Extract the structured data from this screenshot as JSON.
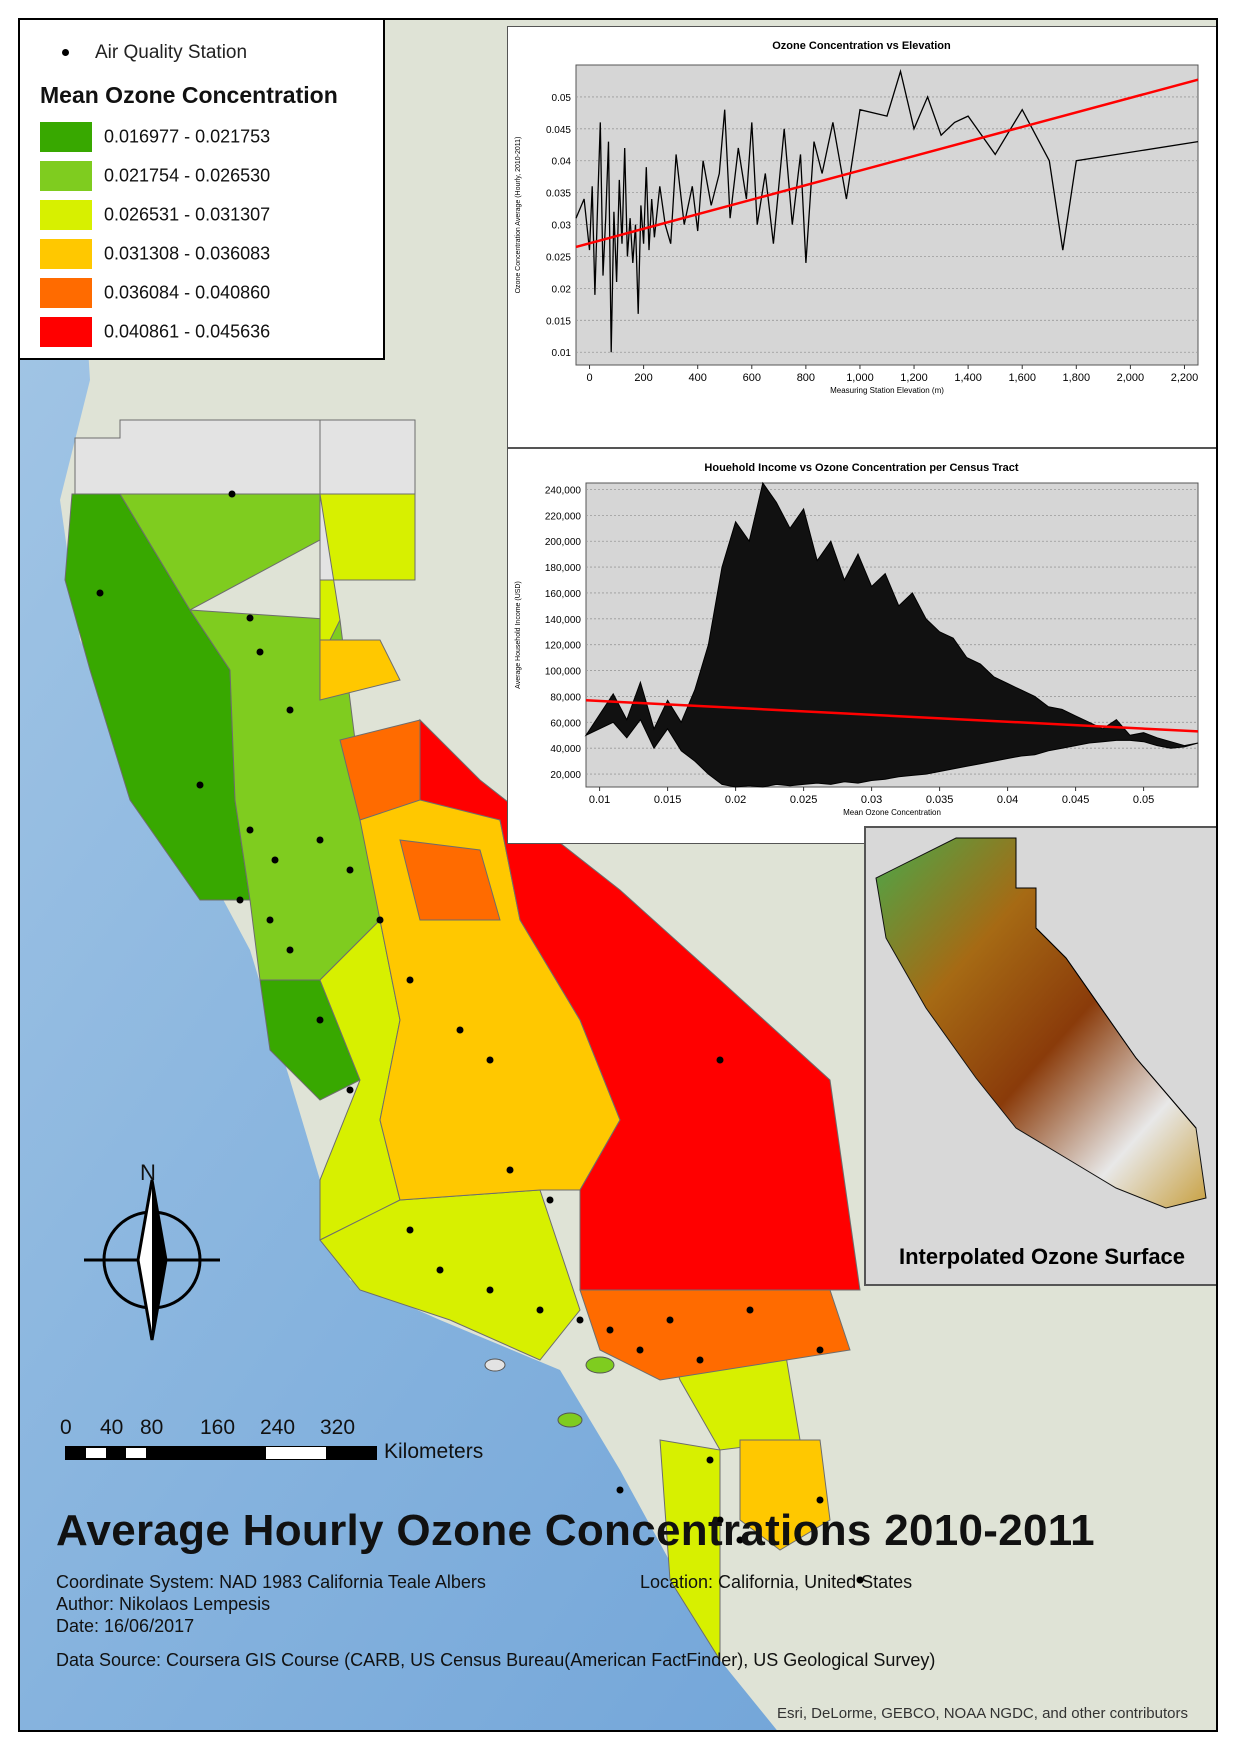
{
  "map": {
    "title": "Average Hourly Ozone Concentrations 2010-2011",
    "coordinate_system": "Coordinate System: NAD 1983 California Teale Albers",
    "location": "Location: California, United States",
    "author": "Author: Nikolaos Lempesis",
    "date": "Date: 16/06/2017",
    "data_source": "Data Source: Coursera GIS Course (CARB, US Census Bureau(American FactFinder), US Geological Survey)",
    "credits": "Esri, DeLorme, GEBCO, NOAA NGDC, and other contributors",
    "north_label": "N"
  },
  "legend": {
    "station_label": "Air Quality Station",
    "title": "Mean Ozone Concentration",
    "classes": [
      {
        "label": "0.016977 - 0.021753",
        "color": "#38a800"
      },
      {
        "label": "0.021754 - 0.026530",
        "color": "#7fcc1f"
      },
      {
        "label": "0.026531 - 0.031307",
        "color": "#d7f000"
      },
      {
        "label": "0.031308 - 0.036083",
        "color": "#ffc800"
      },
      {
        "label": "0.036084 - 0.040860",
        "color": "#ff6b00"
      },
      {
        "label": "0.040861 - 0.045636",
        "color": "#ff0000"
      }
    ]
  },
  "scale_bar": {
    "ticks": [
      "0",
      "40",
      "80",
      "160",
      "240",
      "320"
    ],
    "unit": "Kilometers"
  },
  "inset": {
    "caption": "Interpolated Ozone Surface"
  },
  "chart_data": [
    {
      "type": "line",
      "title": "Ozone Concentration vs Elevation",
      "xlabel": "Measuring Station Elevation (m)",
      "ylabel": "Ozone Concentration Average (Hourly, 2010-2011)",
      "xlim": [
        -50,
        2250
      ],
      "ylim": [
        0.008,
        0.055
      ],
      "x_ticks": [
        "0",
        "200",
        "400",
        "600",
        "800",
        "1,000",
        "1,200",
        "1,400",
        "1,600",
        "1,800",
        "2,000",
        "2,200"
      ],
      "y_ticks": [
        "0.01",
        "0.015",
        "0.02",
        "0.025",
        "0.03",
        "0.035",
        "0.04",
        "0.045",
        "0.05"
      ],
      "series": [
        {
          "name": "Ozone",
          "color": "#000000",
          "x": [
            -50,
            -20,
            0,
            10,
            20,
            30,
            40,
            50,
            60,
            70,
            80,
            90,
            100,
            110,
            120,
            130,
            140,
            150,
            160,
            170,
            180,
            190,
            200,
            210,
            220,
            230,
            240,
            260,
            280,
            300,
            320,
            350,
            380,
            400,
            420,
            450,
            480,
            500,
            520,
            550,
            580,
            600,
            620,
            650,
            680,
            700,
            720,
            750,
            780,
            800,
            830,
            860,
            900,
            950,
            1000,
            1100,
            1150,
            1200,
            1250,
            1300,
            1350,
            1400,
            1500,
            1600,
            1700,
            1750,
            1800,
            1950,
            2250
          ],
          "y": [
            0.031,
            0.034,
            0.026,
            0.036,
            0.019,
            0.033,
            0.046,
            0.022,
            0.031,
            0.043,
            0.01,
            0.032,
            0.021,
            0.037,
            0.027,
            0.042,
            0.025,
            0.031,
            0.024,
            0.03,
            0.016,
            0.033,
            0.027,
            0.039,
            0.026,
            0.034,
            0.028,
            0.036,
            0.03,
            0.027,
            0.041,
            0.03,
            0.036,
            0.029,
            0.04,
            0.033,
            0.038,
            0.048,
            0.031,
            0.042,
            0.034,
            0.046,
            0.03,
            0.038,
            0.027,
            0.036,
            0.045,
            0.03,
            0.041,
            0.024,
            0.043,
            0.038,
            0.046,
            0.034,
            0.048,
            0.047,
            0.054,
            0.045,
            0.05,
            0.044,
            0.046,
            0.047,
            0.041,
            0.048,
            0.04,
            0.026,
            0.04,
            0.041,
            0.043
          ]
        },
        {
          "name": "Trend",
          "color": "#ff0000",
          "x": [
            -50,
            2250
          ],
          "y": [
            0.0265,
            0.0527
          ]
        }
      ]
    },
    {
      "type": "line",
      "title": "Houehold Income vs Ozone Concentration per Census Tract",
      "xlabel": "Mean Ozone Concentration",
      "ylabel": "Average Household Income (USD)",
      "xlim": [
        0.009,
        0.054
      ],
      "ylim": [
        10000,
        245000
      ],
      "x_ticks": [
        "0.01",
        "0.015",
        "0.02",
        "0.025",
        "0.03",
        "0.035",
        "0.04",
        "0.045",
        "0.05"
      ],
      "y_ticks": [
        "20,000",
        "40,000",
        "60,000",
        "80,000",
        "100,000",
        "120,000",
        "140,000",
        "160,000",
        "180,000",
        "200,000",
        "220,000",
        "240,000"
      ],
      "series": [
        {
          "name": "Income",
          "color": "#000000",
          "x": [
            0.009,
            0.011,
            0.012,
            0.013,
            0.014,
            0.015,
            0.016,
            0.017,
            0.018,
            0.019,
            0.02,
            0.021,
            0.022,
            0.023,
            0.024,
            0.025,
            0.026,
            0.027,
            0.028,
            0.029,
            0.03,
            0.031,
            0.032,
            0.033,
            0.034,
            0.035,
            0.036,
            0.037,
            0.038,
            0.039,
            0.04,
            0.041,
            0.042,
            0.043,
            0.044,
            0.045,
            0.046,
            0.047,
            0.048,
            0.049,
            0.05,
            0.051,
            0.052,
            0.053,
            0.054
          ],
          "y": [
            50000,
            82000,
            62000,
            91000,
            55000,
            77000,
            60000,
            85000,
            120000,
            180000,
            215000,
            200000,
            245000,
            230000,
            210000,
            225000,
            185000,
            200000,
            170000,
            190000,
            165000,
            175000,
            150000,
            160000,
            140000,
            130000,
            125000,
            110000,
            105000,
            95000,
            90000,
            85000,
            80000,
            72000,
            70000,
            65000,
            60000,
            55000,
            62000,
            50000,
            52000,
            48000,
            45000,
            42000,
            44000
          ],
          "y_low": [
            50000,
            60000,
            48000,
            62000,
            40000,
            55000,
            38000,
            30000,
            20000,
            12000,
            10000,
            11000,
            10000,
            12000,
            11000,
            12000,
            13000,
            12000,
            14000,
            13000,
            15000,
            16000,
            18000,
            19000,
            20000,
            22000,
            24000,
            26000,
            28000,
            30000,
            32000,
            34000,
            35000,
            38000,
            40000,
            42000,
            44000,
            45000,
            46000,
            46000,
            45000,
            42000,
            40000,
            41000,
            44000
          ]
        },
        {
          "name": "Trend",
          "color": "#ff0000",
          "x": [
            0.009,
            0.054
          ],
          "y": [
            77000,
            53000
          ]
        }
      ]
    }
  ]
}
